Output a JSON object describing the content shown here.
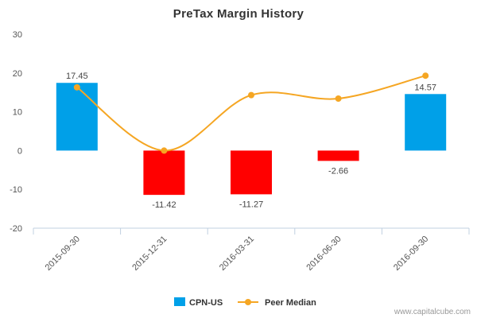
{
  "chart_data": {
    "type": "bar",
    "title": "PreTax Margin History",
    "categories": [
      "2015-09-30",
      "2015-12-31",
      "2016-03-31",
      "2016-06-30",
      "2016-09-30"
    ],
    "series": [
      {
        "name": "CPN-US",
        "kind": "bar",
        "values": [
          17.45,
          -11.42,
          -11.27,
          -2.66,
          14.57
        ],
        "data_labels": [
          "17.45",
          "-11.42",
          "-11.27",
          "-2.66",
          "14.57"
        ],
        "positive_color": "#00a0e8",
        "negative_color": "#ff0000"
      },
      {
        "name": "Peer Median",
        "kind": "line",
        "values": [
          16.3,
          0,
          14.3,
          13.4,
          19.3
        ],
        "color": "#f5a623"
      }
    ],
    "yticks": [
      30,
      20,
      10,
      0,
      -10,
      -20
    ],
    "ylim": [
      -20,
      30
    ],
    "grid": false,
    "legend_position": "bottom-center"
  },
  "footer": {
    "credit": "www.capitalcube.com"
  }
}
